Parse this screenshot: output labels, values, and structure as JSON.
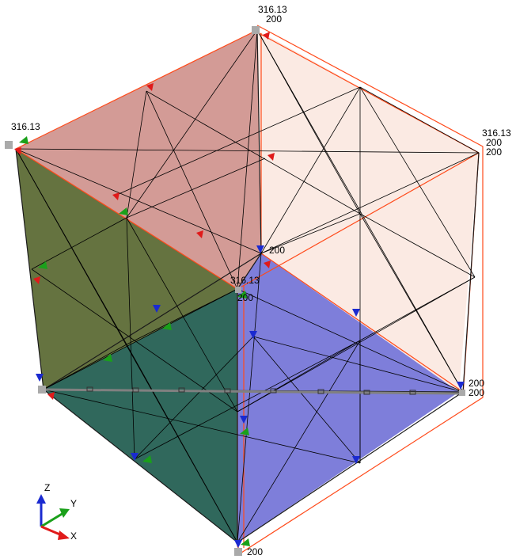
{
  "labels": {
    "top_a": "316.13",
    "top_b": "200",
    "left_a": "316.13",
    "right_a": "316.13",
    "right_b": "200",
    "right_c": "200",
    "center_a": "200",
    "mid_a": "316.13",
    "mid_b": "200",
    "lowright_a": "200",
    "lowright_b": "200",
    "bottom_a": "200"
  },
  "triad": {
    "z": "Z",
    "y": "Y",
    "x": "X"
  },
  "colors": {
    "top_face": "#c0706a",
    "back_right_face": "#f5d2c6",
    "left_face": "#5a6a2e",
    "front_face": "#2f6b60",
    "right_face": "#6a6ad0",
    "edge_highlight": "#ff4a1a",
    "marker_red": "#e01a1a",
    "marker_green": "#1aa01a",
    "marker_blue": "#1a2ad0"
  }
}
